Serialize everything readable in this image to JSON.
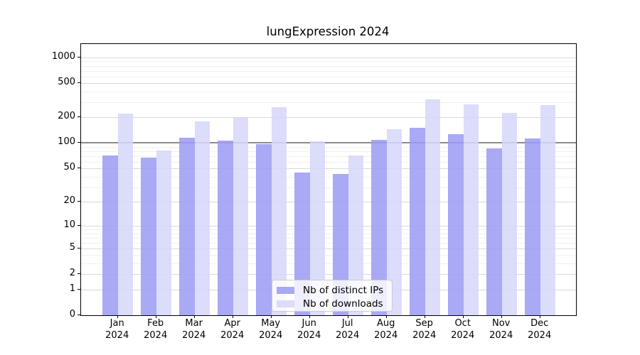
{
  "title": "lungExpression 2024",
  "legend": {
    "items": [
      {
        "label": "Nb of distinct IPs"
      },
      {
        "label": "Nb of downloads"
      }
    ]
  },
  "colors": {
    "bar_distinct_ips": "#9a9af5",
    "bar_downloads": "#d6d6fa",
    "bar_alpha": 0.85,
    "grid_major": "#d9d9d9",
    "grid_minor": "#f0f0f0",
    "grid_emphasis": "#8c8c8c",
    "spine": "#000000",
    "background": "#ffffff"
  },
  "chart_data": {
    "type": "bar",
    "title": "lungExpression 2024",
    "categories": [
      "Jan",
      "Feb",
      "Mar",
      "Apr",
      "May",
      "Jun",
      "Jul",
      "Aug",
      "Sep",
      "Oct",
      "Nov",
      "Dec"
    ],
    "category_year": "2024",
    "series": [
      {
        "name": "Nb of distinct IPs",
        "color": "#9a9af5",
        "values": [
          72,
          68,
          115,
          106,
          97,
          45,
          43,
          110,
          152,
          126,
          87,
          113
        ]
      },
      {
        "name": "Nb of downloads",
        "color": "#d6d6fa",
        "values": [
          222,
          82,
          178,
          199,
          265,
          104,
          71,
          146,
          322,
          282,
          225,
          277
        ]
      }
    ],
    "xlabel": "",
    "ylabel": "",
    "yscale": "log1p",
    "ylim": [
      0,
      1434
    ],
    "y_ticks": [
      0,
      1,
      2,
      5,
      10,
      20,
      50,
      100,
      200,
      500,
      1000
    ],
    "y_minor_ticks": [
      3,
      4,
      6,
      7,
      8,
      9,
      30,
      40,
      60,
      70,
      80,
      90,
      300,
      400,
      600,
      700,
      800,
      900
    ],
    "emphasized_gridline": 100,
    "grid": true,
    "legend_position": "lower center"
  }
}
